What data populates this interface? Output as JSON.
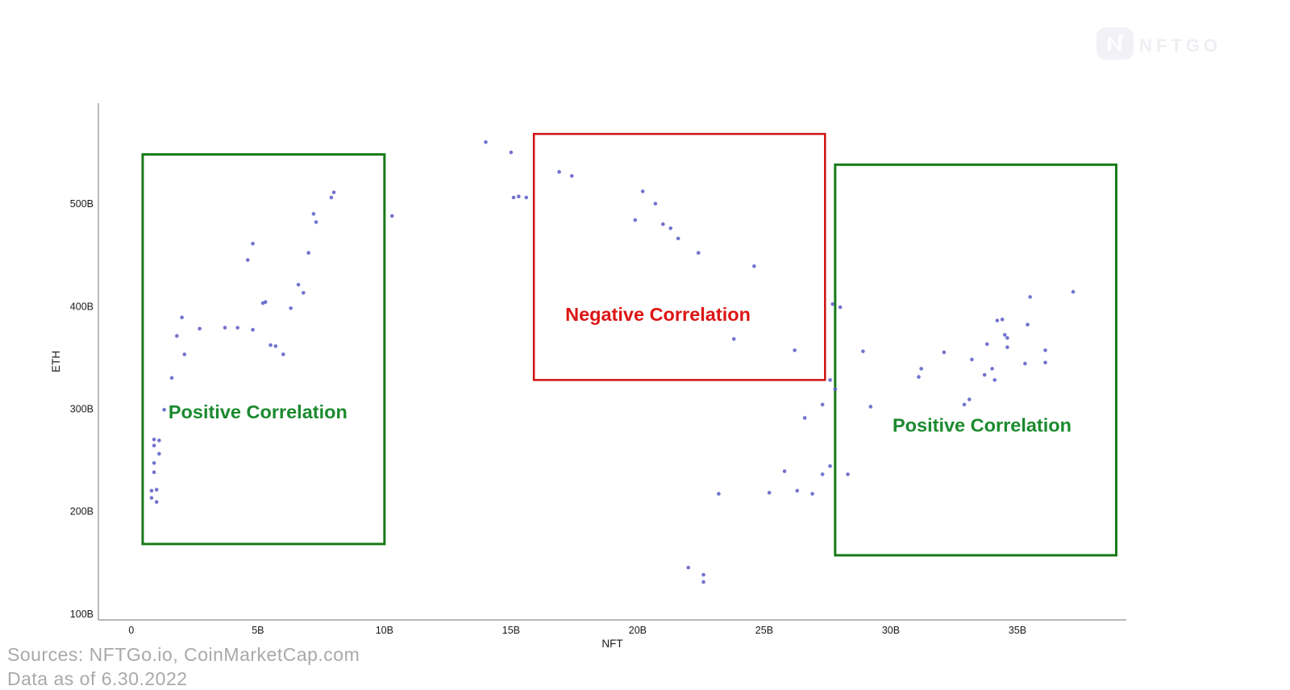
{
  "header": {
    "logo_text": "NFTGO"
  },
  "footer": {
    "sources": "Sources: NFTGo.io, CoinMarketCap.com",
    "date_partial": "Data as of 6.30.2022"
  },
  "colors": {
    "green_box": "#177a17",
    "green_text": "#1b8a2e",
    "red_box": "#cf1111",
    "red_text": "#dc1515",
    "point": "#5b5bc7",
    "axis": "#8c8c8c",
    "tick_text": "#1a1a1a",
    "footer_text": "#a9a9a9",
    "logo": "#eeeef3"
  },
  "chart_data": {
    "type": "scatter",
    "title": "",
    "xlabel": "NFT",
    "ylabel": "ETH",
    "xlim": [
      -1.3,
      39.3
    ],
    "ylim": [
      94,
      598
    ],
    "x_ticks": {
      "values": [
        0,
        5,
        10,
        15,
        20,
        25,
        30,
        35
      ],
      "labels": [
        "0",
        "5B",
        "10B",
        "15B",
        "20B",
        "25B",
        "30B",
        "35B"
      ]
    },
    "y_ticks": {
      "values": [
        100,
        200,
        300,
        400,
        500
      ],
      "labels": [
        "100B",
        "200B",
        "300B",
        "400B",
        "500B"
      ]
    },
    "point_color": "#5b5bc7",
    "points": [
      [
        1.8,
        371
      ],
      [
        2.0,
        389
      ],
      [
        2.7,
        378
      ],
      [
        3.7,
        379
      ],
      [
        4.2,
        379
      ],
      [
        4.8,
        377
      ],
      [
        5.5,
        362
      ],
      [
        5.7,
        361
      ],
      [
        6.0,
        353
      ],
      [
        2.1,
        353
      ],
      [
        1.6,
        330
      ],
      [
        1.3,
        299
      ],
      [
        0.9,
        270
      ],
      [
        1.1,
        269
      ],
      [
        0.9,
        264
      ],
      [
        1.1,
        256
      ],
      [
        0.9,
        247
      ],
      [
        0.9,
        238
      ],
      [
        0.8,
        220
      ],
      [
        1.0,
        221
      ],
      [
        0.8,
        213
      ],
      [
        1.0,
        209
      ],
      [
        4.8,
        461
      ],
      [
        4.6,
        445
      ],
      [
        7.0,
        452
      ],
      [
        6.6,
        421
      ],
      [
        6.8,
        413
      ],
      [
        5.2,
        403
      ],
      [
        5.3,
        404
      ],
      [
        6.3,
        398
      ],
      [
        8.0,
        511
      ],
      [
        7.9,
        506
      ],
      [
        7.2,
        490
      ],
      [
        7.3,
        482
      ],
      [
        10.3,
        488
      ],
      [
        14.0,
        560
      ],
      [
        15.0,
        550
      ],
      [
        16.9,
        531
      ],
      [
        17.4,
        527
      ],
      [
        15.1,
        506
      ],
      [
        15.3,
        507
      ],
      [
        15.6,
        506
      ],
      [
        20.2,
        512
      ],
      [
        20.7,
        500
      ],
      [
        19.9,
        484
      ],
      [
        21.0,
        480
      ],
      [
        21.3,
        476
      ],
      [
        21.6,
        466
      ],
      [
        22.4,
        452
      ],
      [
        24.6,
        439
      ],
      [
        23.8,
        368
      ],
      [
        26.2,
        357
      ],
      [
        23.2,
        217
      ],
      [
        25.2,
        218
      ],
      [
        25.8,
        239
      ],
      [
        26.3,
        220
      ],
      [
        26.9,
        217
      ],
      [
        27.3,
        236
      ],
      [
        27.6,
        244
      ],
      [
        28.3,
        236
      ],
      [
        26.6,
        291
      ],
      [
        27.3,
        304
      ],
      [
        29.2,
        302
      ],
      [
        22.0,
        145
      ],
      [
        22.6,
        138
      ],
      [
        22.6,
        131
      ],
      [
        27.6,
        328
      ],
      [
        27.8,
        319
      ],
      [
        27.7,
        402
      ],
      [
        28.0,
        399
      ],
      [
        28.9,
        356
      ],
      [
        37.2,
        414
      ],
      [
        35.5,
        409
      ],
      [
        34.2,
        386
      ],
      [
        34.4,
        387
      ],
      [
        35.4,
        382
      ],
      [
        34.5,
        372
      ],
      [
        34.6,
        369
      ],
      [
        33.8,
        363
      ],
      [
        34.6,
        360
      ],
      [
        32.1,
        355
      ],
      [
        36.1,
        357
      ],
      [
        33.2,
        348
      ],
      [
        35.3,
        344
      ],
      [
        36.1,
        345
      ],
      [
        31.2,
        339
      ],
      [
        31.1,
        331
      ],
      [
        34.0,
        339
      ],
      [
        33.7,
        333
      ],
      [
        34.1,
        328
      ],
      [
        32.9,
        304
      ],
      [
        33.1,
        309
      ]
    ],
    "annotations": [
      {
        "label": "Positive Correlation",
        "color": "green",
        "x_range": [
          0.45,
          10.0
        ],
        "y_range": [
          168,
          548
        ],
        "label_at": [
          5.0,
          297
        ]
      },
      {
        "label": "Negative Correlation",
        "color": "red",
        "x_range": [
          15.9,
          27.4
        ],
        "y_range": [
          328,
          568
        ],
        "label_at": [
          20.8,
          392
        ]
      },
      {
        "label": "Positive Correlation",
        "color": "green",
        "x_range": [
          27.8,
          38.9
        ],
        "y_range": [
          157,
          538
        ],
        "label_at": [
          33.6,
          284
        ]
      }
    ]
  }
}
